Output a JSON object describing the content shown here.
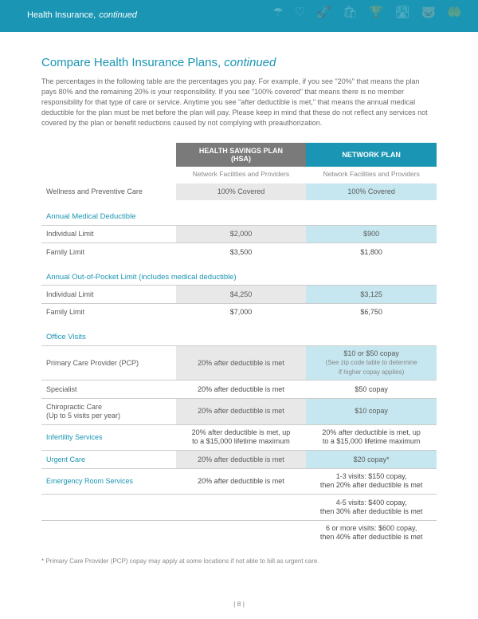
{
  "header": {
    "title": "Health Insurance,",
    "subtitle": "continued"
  },
  "page": {
    "title_main": "Compare Health Insurance Plans,",
    "title_sub": "continued",
    "intro": "The percentages in the following table are the percentages you pay. For example, if you see \"20%\" that means the plan pays 80% and the remaining 20% is your responsibility. If you see \"100% covered\" that means there is no member responsibility for that type of care or service. Anytime you see \"after deductible is met,\" that means the annual medical deductible for the plan must be met before the plan will pay. Please keep in mind that these do not reflect any services not covered by the plan or benefit reductions caused by not complying with preauthorization."
  },
  "table": {
    "headers": {
      "hsa_line1": "HEALTH SAVINGS PLAN",
      "hsa_line2": "(HSA)",
      "network": "NETWORK PLAN",
      "facilities": "Network Facilities and Providers"
    },
    "wellness": {
      "label": "Wellness and Preventive Care",
      "hsa": "100% Covered",
      "net": "100% Covered"
    },
    "sec_deductible": "Annual Medical Deductible",
    "ded_ind": {
      "label": "Individual Limit",
      "hsa": "$2,000",
      "net": "$900"
    },
    "ded_fam": {
      "label": "Family Limit",
      "hsa": "$3,500",
      "net": "$1,800"
    },
    "sec_oop": "Annual Out-of-Pocket Limit (includes medical deductible)",
    "oop_ind": {
      "label": "Individual Limit",
      "hsa": "$4,250",
      "net": "$3,125"
    },
    "oop_fam": {
      "label": "Family Limit",
      "hsa": "$7,000",
      "net": "$6,750"
    },
    "sec_office": "Office Visits",
    "pcp": {
      "label": "Primary Care Provider (PCP)",
      "hsa": "20% after deductible is met",
      "net_l1": "$10 or $50 copay",
      "net_l2": "(See zip code table to determine",
      "net_l3": "if higher copay applies)"
    },
    "specialist": {
      "label": "Specialist",
      "hsa": "20% after deductible is met",
      "net": "$50 copay"
    },
    "chiro": {
      "label_l1": "Chiropractic Care",
      "label_l2": "(Up to 5 visits per year)",
      "hsa": "20% after deductible is met",
      "net": "$10 copay"
    },
    "infertility": {
      "label": "Infertility Services",
      "hsa_l1": "20% after deductible is met, up",
      "hsa_l2": "to a $15,000 lifetime maximum",
      "net_l1": "20% after deductible is met, up",
      "net_l2": "to a $15,000 lifetime maximum"
    },
    "urgent": {
      "label": "Urgent Care",
      "hsa": "20% after deductible is met",
      "net": "$20 copay*"
    },
    "er": {
      "label": "Emergency Room Services",
      "hsa": "20% after deductible is met",
      "net1_l1": "1-3 visits: $150 copay,",
      "net1_l2": "then 20% after deductible is met",
      "net2_l1": "4-5 visits: $400 copay,",
      "net2_l2": "then 30% after deductible is met",
      "net3_l1": "6 or more visits: $600 copay,",
      "net3_l2": "then 40% after deductible is met"
    }
  },
  "footnote": "* Primary Care Provider (PCP) copay may apply at some locations if not able to bill as urgent care.",
  "pagenum": "| 8 |"
}
